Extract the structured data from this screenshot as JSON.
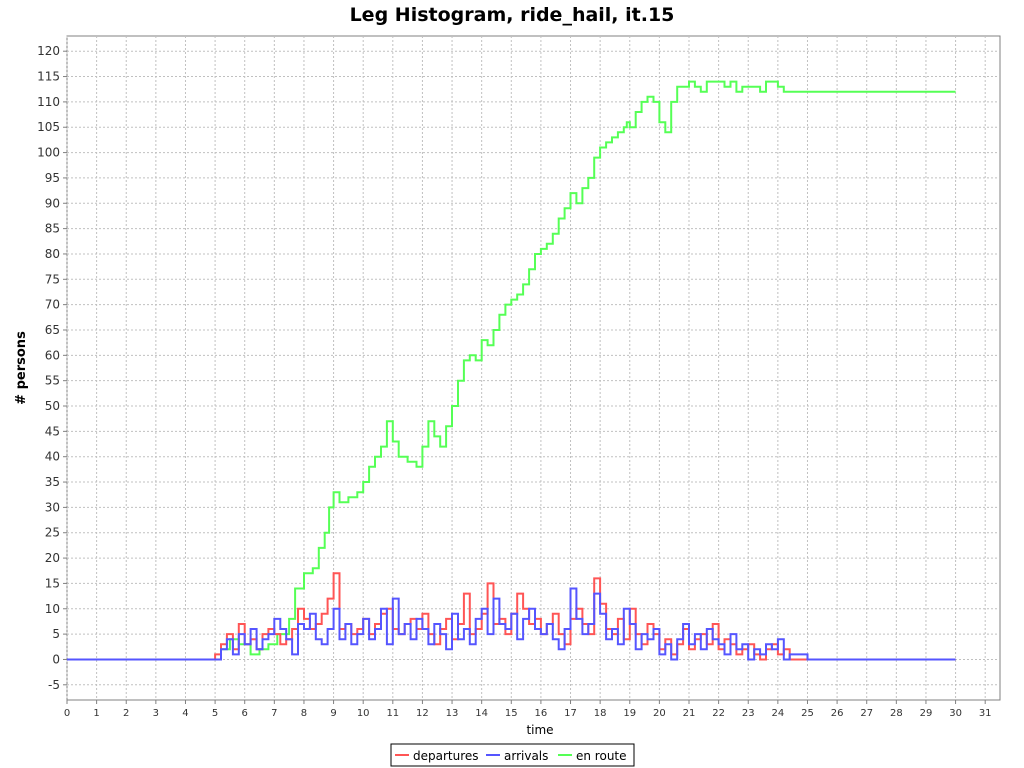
{
  "chart_data": {
    "type": "line",
    "title": "Leg Histogram, ride_hail, it.15",
    "xlabel": "time",
    "ylabel": "# persons",
    "xlim": [
      0,
      31.5
    ],
    "ylim": [
      -8,
      123
    ],
    "xticks": [
      0,
      1,
      2,
      3,
      4,
      5,
      6,
      7,
      8,
      9,
      10,
      11,
      12,
      13,
      14,
      15,
      16,
      17,
      18,
      19,
      20,
      21,
      22,
      23,
      24,
      25,
      26,
      27,
      28,
      29,
      30,
      31
    ],
    "yticks": [
      -5,
      0,
      5,
      10,
      15,
      20,
      25,
      30,
      35,
      40,
      45,
      50,
      55,
      60,
      65,
      70,
      75,
      80,
      85,
      90,
      95,
      100,
      105,
      110,
      115,
      120
    ],
    "grid": true,
    "legend_position": "bottom",
    "colors": {
      "departures": "#ff5555",
      "arrivals": "#5555ff",
      "en_route": "#55ff55"
    },
    "series": [
      {
        "name": "en route",
        "color": "#55ff55",
        "x": [
          0,
          5.0,
          5.2,
          5.5,
          5.8,
          6.2,
          6.5,
          6.8,
          7.1,
          7.5,
          7.7,
          8.0,
          8.3,
          8.5,
          8.7,
          8.85,
          9.0,
          9.2,
          9.5,
          9.8,
          10.0,
          10.2,
          10.4,
          10.6,
          10.8,
          11.0,
          11.2,
          11.5,
          11.8,
          12.0,
          12.2,
          12.4,
          12.6,
          12.8,
          13.0,
          13.2,
          13.4,
          13.6,
          13.8,
          14.0,
          14.2,
          14.4,
          14.6,
          14.8,
          15.0,
          15.2,
          15.4,
          15.6,
          15.8,
          16.0,
          16.2,
          16.4,
          16.6,
          16.8,
          17.0,
          17.2,
          17.4,
          17.6,
          17.8,
          18.0,
          18.2,
          18.4,
          18.6,
          18.8,
          18.9,
          19.0,
          19.2,
          19.4,
          19.6,
          19.8,
          20.0,
          20.2,
          20.4,
          20.6,
          20.8,
          21.0,
          21.2,
          21.4,
          21.6,
          21.8,
          22.0,
          22.2,
          22.4,
          22.6,
          22.8,
          23.0,
          23.2,
          23.4,
          23.6,
          23.8,
          24.0,
          24.2,
          24.4,
          25,
          26,
          27,
          28,
          29,
          30
        ],
        "values": [
          0,
          0,
          2,
          4,
          3,
          1,
          2,
          3,
          5,
          8,
          14,
          17,
          18,
          22,
          25,
          30,
          33,
          31,
          32,
          33,
          35,
          38,
          40,
          42,
          47,
          43,
          40,
          39,
          38,
          42,
          47,
          44,
          42,
          46,
          50,
          55,
          59,
          60,
          59,
          63,
          62,
          65,
          68,
          70,
          71,
          72,
          74,
          77,
          80,
          81,
          82,
          84,
          87,
          89,
          92,
          90,
          93,
          95,
          99,
          101,
          102,
          103,
          104,
          105,
          106,
          105,
          108,
          110,
          111,
          110,
          106,
          104,
          110,
          113,
          113,
          114,
          113,
          112,
          114,
          114,
          114,
          113,
          114,
          112,
          113,
          113,
          113,
          112,
          114,
          114,
          113,
          112,
          112,
          112,
          112,
          112,
          112,
          112,
          112
        ],
        "step": true
      },
      {
        "name": "departures",
        "color": "#ff5555",
        "x": [
          0,
          5.0,
          5.2,
          5.4,
          5.6,
          5.8,
          6.0,
          6.2,
          6.4,
          6.6,
          6.8,
          7.0,
          7.2,
          7.4,
          7.6,
          7.8,
          8.0,
          8.2,
          8.4,
          8.6,
          8.8,
          9.0,
          9.2,
          9.4,
          9.6,
          9.8,
          10.0,
          10.2,
          10.4,
          10.6,
          10.8,
          11.0,
          11.2,
          11.4,
          11.6,
          11.8,
          12.0,
          12.2,
          12.4,
          12.6,
          12.8,
          13.0,
          13.2,
          13.4,
          13.6,
          13.8,
          14.0,
          14.2,
          14.4,
          14.6,
          14.8,
          15.0,
          15.2,
          15.4,
          15.6,
          15.8,
          16.0,
          16.2,
          16.4,
          16.6,
          16.8,
          17.0,
          17.2,
          17.4,
          17.6,
          17.8,
          18.0,
          18.2,
          18.4,
          18.6,
          18.8,
          19.0,
          19.2,
          19.4,
          19.6,
          19.8,
          20.0,
          20.2,
          20.4,
          20.6,
          20.8,
          21.0,
          21.2,
          21.4,
          21.6,
          21.8,
          22.0,
          22.2,
          22.4,
          22.6,
          22.8,
          23.0,
          23.2,
          23.4,
          23.6,
          23.8,
          24.0,
          24.2,
          24.4,
          25,
          30
        ],
        "values": [
          0,
          1,
          3,
          5,
          2,
          7,
          3,
          4,
          2,
          5,
          6,
          5,
          3,
          4,
          6,
          10,
          8,
          6,
          7,
          9,
          12,
          17,
          6,
          7,
          5,
          6,
          8,
          5,
          7,
          9,
          10,
          6,
          5,
          7,
          8,
          6,
          9,
          5,
          3,
          6,
          8,
          4,
          7,
          13,
          5,
          6,
          9,
          15,
          7,
          8,
          5,
          9,
          13,
          10,
          7,
          8,
          5,
          7,
          9,
          5,
          3,
          8,
          10,
          7,
          5,
          16,
          11,
          6,
          5,
          8,
          4,
          10,
          5,
          3,
          7,
          5,
          2,
          4,
          1,
          3,
          6,
          2,
          4,
          5,
          3,
          7,
          2,
          4,
          3,
          1,
          2,
          3,
          1,
          0,
          2,
          3,
          1,
          2,
          0,
          0,
          0
        ],
        "step": true
      },
      {
        "name": "arrivals",
        "color": "#5555ff",
        "x": [
          0,
          5.0,
          5.2,
          5.4,
          5.6,
          5.8,
          6.0,
          6.2,
          6.4,
          6.6,
          6.8,
          7.0,
          7.2,
          7.4,
          7.6,
          7.8,
          8.0,
          8.2,
          8.4,
          8.6,
          8.8,
          9.0,
          9.2,
          9.4,
          9.6,
          9.8,
          10.0,
          10.2,
          10.4,
          10.6,
          10.8,
          11.0,
          11.2,
          11.4,
          11.6,
          11.8,
          12.0,
          12.2,
          12.4,
          12.6,
          12.8,
          13.0,
          13.2,
          13.4,
          13.6,
          13.8,
          14.0,
          14.2,
          14.4,
          14.6,
          14.8,
          15.0,
          15.2,
          15.4,
          15.6,
          15.8,
          16.0,
          16.2,
          16.4,
          16.6,
          16.8,
          17.0,
          17.2,
          17.4,
          17.6,
          17.8,
          18.0,
          18.2,
          18.4,
          18.6,
          18.8,
          19.0,
          19.2,
          19.4,
          19.6,
          19.8,
          20.0,
          20.2,
          20.4,
          20.6,
          20.8,
          21.0,
          21.2,
          21.4,
          21.6,
          21.8,
          22.0,
          22.2,
          22.4,
          22.6,
          22.8,
          23.0,
          23.2,
          23.4,
          23.6,
          23.8,
          24.0,
          24.2,
          24.4,
          25,
          30
        ],
        "values": [
          0,
          0,
          2,
          4,
          1,
          5,
          3,
          6,
          2,
          4,
          5,
          8,
          6,
          4,
          1,
          7,
          6,
          9,
          4,
          3,
          6,
          10,
          4,
          7,
          3,
          5,
          8,
          4,
          6,
          10,
          3,
          12,
          5,
          7,
          4,
          8,
          6,
          3,
          7,
          5,
          2,
          9,
          4,
          6,
          3,
          8,
          10,
          5,
          12,
          7,
          6,
          9,
          4,
          8,
          10,
          6,
          5,
          7,
          4,
          2,
          6,
          14,
          8,
          5,
          7,
          13,
          9,
          4,
          6,
          3,
          10,
          7,
          2,
          5,
          4,
          6,
          1,
          3,
          0,
          4,
          7,
          3,
          5,
          2,
          6,
          4,
          3,
          1,
          5,
          2,
          3,
          0,
          2,
          1,
          3,
          2,
          4,
          0,
          1,
          0,
          0
        ],
        "step": true
      }
    ]
  }
}
